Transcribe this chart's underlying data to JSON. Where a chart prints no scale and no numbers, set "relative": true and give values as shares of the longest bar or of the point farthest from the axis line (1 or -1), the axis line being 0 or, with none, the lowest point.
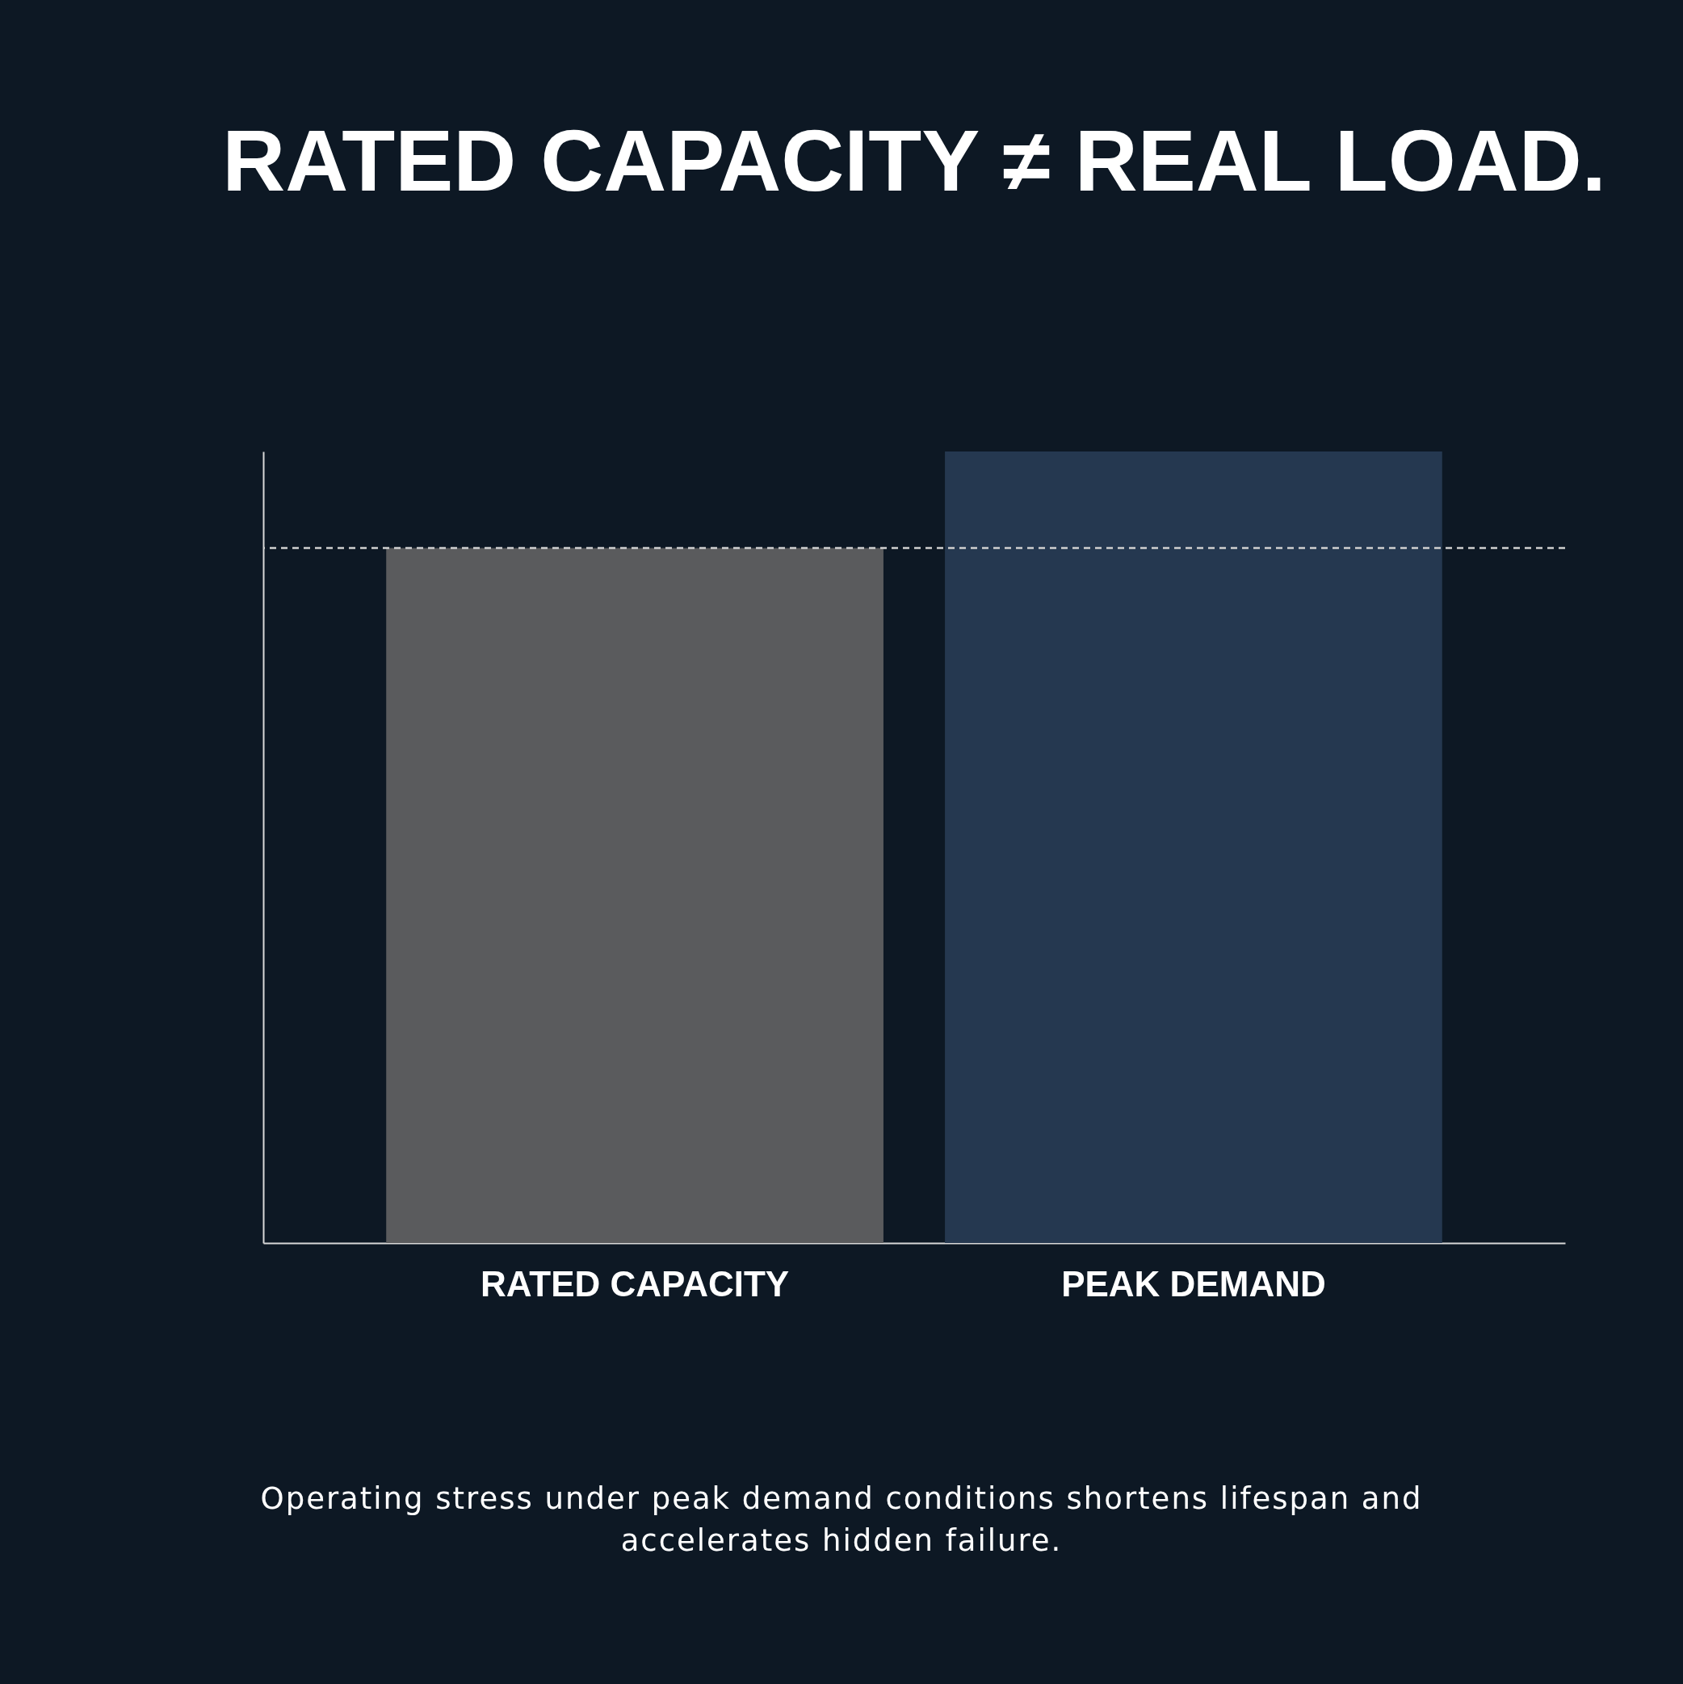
{
  "chart_data": {
    "type": "bar",
    "title": "RATED CAPACITY ≠ REAL LOAD.",
    "categories": [
      "RATED CAPACITY",
      "PEAK DEMAND"
    ],
    "values": [
      0.878,
      1
    ],
    "colors": [
      "#5a5b5d",
      "#253850"
    ],
    "relative": true,
    "ref_lines": [
      {
        "axis": "y",
        "value": 0.878,
        "color": "#d0d0d0",
        "line_style": "dashed"
      }
    ],
    "annotations": [
      "Operating stress under peak demand conditions shortens lifespan and accelerates hidden failure."
    ],
    "grid": false,
    "legend": false
  }
}
